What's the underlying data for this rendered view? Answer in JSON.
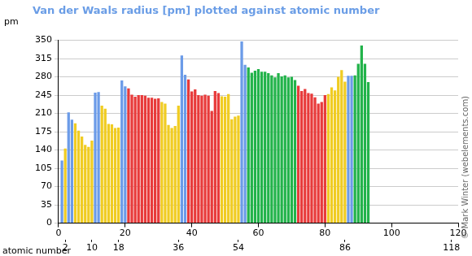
{
  "chart_data": {
    "type": "bar",
    "title": "Van der Waals radius [pm] plotted against atomic number",
    "y_label": "pm",
    "x_label": "atomic number",
    "annotation": "© Mark Winter (webelements.com)",
    "x": [
      1,
      2,
      3,
      4,
      5,
      6,
      7,
      8,
      9,
      10,
      11,
      12,
      13,
      14,
      15,
      16,
      17,
      18,
      19,
      20,
      21,
      22,
      23,
      24,
      25,
      26,
      27,
      28,
      29,
      30,
      31,
      32,
      33,
      34,
      35,
      36,
      37,
      38,
      39,
      40,
      41,
      42,
      43,
      44,
      45,
      46,
      47,
      48,
      49,
      50,
      51,
      52,
      53,
      54,
      55,
      56,
      57,
      58,
      59,
      60,
      61,
      62,
      63,
      64,
      65,
      66,
      67,
      68,
      69,
      70,
      71,
      72,
      73,
      74,
      75,
      76,
      77,
      78,
      79,
      80,
      81,
      82,
      83,
      84,
      85,
      86,
      87,
      88,
      89,
      90,
      91,
      92,
      93
    ],
    "values": [
      120,
      143,
      212,
      198,
      191,
      177,
      166,
      150,
      146,
      158,
      250,
      251,
      225,
      219,
      190,
      189,
      182,
      183,
      273,
      262,
      258,
      246,
      242,
      245,
      245,
      244,
      240,
      240,
      238,
      239,
      232,
      229,
      188,
      182,
      186,
      225,
      321,
      284,
      275,
      252,
      256,
      245,
      244,
      246,
      244,
      215,
      253,
      249,
      243,
      242,
      247,
      199,
      204,
      206,
      348,
      303,
      298,
      288,
      292,
      295,
      290,
      290,
      287,
      283,
      279,
      287,
      281,
      283,
      279,
      280,
      274,
      263,
      253,
      257,
      249,
      248,
      241,
      229,
      232,
      245,
      247,
      260,
      254,
      280,
      293,
      271,
      282,
      282,
      283,
      305,
      340,
      305,
      270
    ],
    "colors": [
      "#6b9be8",
      "#f0cc22",
      "#6b9be8",
      "#6b9be8",
      "#f0cc22",
      "#f0cc22",
      "#f0cc22",
      "#f0cc22",
      "#f0cc22",
      "#f0cc22",
      "#6b9be8",
      "#6b9be8",
      "#f0cc22",
      "#f0cc22",
      "#f0cc22",
      "#f0cc22",
      "#f0cc22",
      "#f0cc22",
      "#6b9be8",
      "#6b9be8",
      "#e83a3a",
      "#e83a3a",
      "#e83a3a",
      "#e83a3a",
      "#e83a3a",
      "#e83a3a",
      "#e83a3a",
      "#e83a3a",
      "#e83a3a",
      "#e83a3a",
      "#f0cc22",
      "#f0cc22",
      "#f0cc22",
      "#f0cc22",
      "#f0cc22",
      "#f0cc22",
      "#6b9be8",
      "#6b9be8",
      "#e83a3a",
      "#e83a3a",
      "#e83a3a",
      "#e83a3a",
      "#e83a3a",
      "#e83a3a",
      "#e83a3a",
      "#e83a3a",
      "#e83a3a",
      "#e83a3a",
      "#f0cc22",
      "#f0cc22",
      "#f0cc22",
      "#f0cc22",
      "#f0cc22",
      "#f0cc22",
      "#6b9be8",
      "#6b9be8",
      "#22b34a",
      "#22b34a",
      "#22b34a",
      "#22b34a",
      "#22b34a",
      "#22b34a",
      "#22b34a",
      "#22b34a",
      "#22b34a",
      "#22b34a",
      "#22b34a",
      "#22b34a",
      "#22b34a",
      "#22b34a",
      "#22b34a",
      "#e83a3a",
      "#e83a3a",
      "#e83a3a",
      "#e83a3a",
      "#e83a3a",
      "#e83a3a",
      "#e83a3a",
      "#e83a3a",
      "#e83a3a",
      "#f0cc22",
      "#f0cc22",
      "#f0cc22",
      "#f0cc22",
      "#f0cc22",
      "#f0cc22",
      "#6b9be8",
      "#6b9be8",
      "#22b34a",
      "#22b34a",
      "#22b34a",
      "#22b34a",
      "#22b34a"
    ],
    "xlim": [
      0,
      120
    ],
    "xticks": [
      0,
      20,
      40,
      60,
      80,
      100,
      120
    ],
    "x2lim": [
      0,
      120
    ],
    "x2ticks": [
      2,
      10,
      18,
      36,
      54,
      86,
      118
    ],
    "ylim": [
      0,
      350
    ],
    "yticks": [
      0,
      35,
      70,
      105,
      140,
      175,
      210,
      245,
      280,
      315,
      350
    ],
    "grid": true,
    "legend": false
  }
}
